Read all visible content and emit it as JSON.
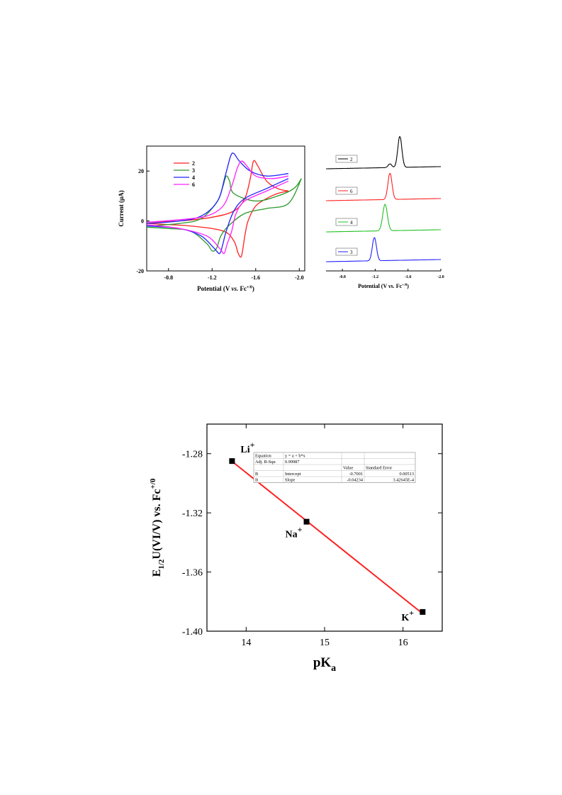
{
  "chart_data": [
    {
      "type": "line",
      "name": "cyclic-voltammogram",
      "xlabel": "Potential (V vs. Fc+/0)",
      "ylabel": "Current (μA)",
      "xlim": [
        -0.6,
        -2.05
      ],
      "ylim": [
        -20,
        30
      ],
      "x_reversed": true,
      "xticks": [
        -0.8,
        -1.2,
        -1.6,
        -2.0
      ],
      "yticks": [
        -20,
        0,
        20
      ],
      "xtick_labels": [
        "-0.8",
        "-1.2",
        "-1.6",
        "-2.0"
      ],
      "ytick_labels": [
        "-20",
        "0",
        "20"
      ],
      "legend_position": "top-left",
      "series": [
        {
          "name": "2",
          "color": "#ff2020",
          "forward_x": [
            -0.6,
            -0.9,
            -1.2,
            -1.4,
            -1.5,
            -1.55,
            -1.58,
            -1.62,
            -1.7,
            -1.8,
            -1.9
          ],
          "forward_y": [
            -0.5,
            0,
            1.5,
            4,
            9,
            17,
            24,
            22,
            16,
            13,
            12
          ],
          "reverse_x": [
            -1.9,
            -1.8,
            -1.7,
            -1.6,
            -1.53,
            -1.5,
            -1.47,
            -1.44,
            -1.4,
            -1.3,
            -1.0,
            -0.6
          ],
          "reverse_y": [
            12,
            11,
            9,
            6,
            0,
            -6,
            -14,
            -13,
            -8,
            -4,
            -2,
            -1
          ]
        },
        {
          "name": "3",
          "color": "#2a9a2a",
          "forward_x": [
            -0.6,
            -0.9,
            -1.1,
            -1.25,
            -1.3,
            -1.33,
            -1.36,
            -1.4,
            -1.6,
            -1.8,
            -1.95,
            -2.02
          ],
          "forward_y": [
            -2,
            -1,
            1,
            8,
            14,
            18,
            16,
            11,
            8,
            10,
            13,
            17
          ],
          "reverse_x": [
            -2.02,
            -1.9,
            -1.7,
            -1.5,
            -1.35,
            -1.28,
            -1.24,
            -1.2,
            -1.15,
            -1.0,
            -0.8,
            -0.6
          ],
          "reverse_y": [
            17,
            7,
            5,
            3,
            -2,
            -6,
            -11,
            -12,
            -9,
            -4,
            -3,
            -2.5
          ]
        },
        {
          "name": "4",
          "color": "#2020ff",
          "forward_x": [
            -0.6,
            -0.9,
            -1.1,
            -1.25,
            -1.32,
            -1.37,
            -1.4,
            -1.45,
            -1.55,
            -1.7,
            -1.9
          ],
          "forward_y": [
            -1,
            0,
            2,
            8,
            18,
            26,
            27,
            24,
            20,
            18,
            19
          ],
          "reverse_x": [
            -1.9,
            -1.7,
            -1.5,
            -1.4,
            -1.33,
            -1.3,
            -1.27,
            -1.22,
            -1.1,
            -0.9,
            -0.6
          ],
          "reverse_y": [
            17,
            13,
            9,
            4,
            -4,
            -9,
            -13,
            -11,
            -6,
            -3,
            -2
          ]
        },
        {
          "name": "6",
          "color": "#ff20ff",
          "forward_x": [
            -0.6,
            -0.9,
            -1.15,
            -1.3,
            -1.38,
            -1.43,
            -1.47,
            -1.52,
            -1.6,
            -1.75,
            -1.9
          ],
          "forward_y": [
            -0.5,
            0.5,
            2,
            6,
            14,
            21,
            24,
            22,
            18,
            17,
            18
          ],
          "reverse_x": [
            -1.9,
            -1.7,
            -1.5,
            -1.42,
            -1.38,
            -1.34,
            -1.31,
            -1.27,
            -1.15,
            -0.9,
            -0.6
          ],
          "reverse_y": [
            16,
            12,
            8,
            3,
            -4,
            -9,
            -13,
            -11,
            -6,
            -3,
            -1.5
          ]
        }
      ]
    },
    {
      "type": "line",
      "name": "differential-pulse-voltammogram",
      "xlabel": "Potential (V vs. Fc+/0)",
      "xlim": [
        -0.6,
        -2.0
      ],
      "x_reversed": true,
      "xticks": [
        -0.8,
        -1.2,
        -1.6,
        -2.0
      ],
      "xtick_labels": [
        "-0.8",
        "-1.2",
        "-1.6",
        "-2.0"
      ],
      "legend_position": "left",
      "series": [
        {
          "name": "2",
          "color": "#000000",
          "baseline": 3,
          "peak_x": -1.5,
          "peak_h": 1.0,
          "width": 0.035,
          "shoulder_x": -1.38,
          "shoulder_h": 0.12
        },
        {
          "name": "6",
          "color": "#ff2020",
          "baseline": 2,
          "peak_x": -1.38,
          "peak_h": 0.85,
          "width": 0.035
        },
        {
          "name": "4",
          "color": "#20c020",
          "baseline": 1,
          "peak_x": -1.32,
          "peak_h": 0.85,
          "width": 0.04
        },
        {
          "name": "3",
          "color": "#2020ff",
          "baseline": 0,
          "peak_x": -1.19,
          "peak_h": 0.75,
          "width": 0.035
        }
      ]
    },
    {
      "type": "scatter",
      "name": "e-half-vs-pka",
      "xlabel": "pK",
      "xlabel_sub": "a",
      "ylabel_main": "E",
      "ylabel_sub": "1/2",
      "ylabel_rest": "U(VI/V) vs. Fc",
      "ylabel_sup": "+/0",
      "xlim": [
        13.5,
        16.5
      ],
      "ylim": [
        -1.4,
        -1.26
      ],
      "xticks": [
        14,
        15,
        16
      ],
      "yticks": [
        -1.4,
        -1.36,
        -1.32,
        -1.28
      ],
      "xtick_labels": [
        "14",
        "15",
        "16"
      ],
      "ytick_labels": [
        "-1.40",
        "-1.36",
        "-1.32",
        "-1.28"
      ],
      "points": [
        {
          "x": 13.82,
          "y": -1.285,
          "label": "Li",
          "sup": "+"
        },
        {
          "x": 14.77,
          "y": -1.326,
          "label": "Na",
          "sup": "+"
        },
        {
          "x": 16.25,
          "y": -1.387,
          "label": "K",
          "sup": "+"
        }
      ],
      "fit": {
        "intercept": -0.7001,
        "slope": -0.04234,
        "color": "#ff2020"
      },
      "point_color": "#000000",
      "stats_table": [
        [
          "Equation",
          "y = a + b*x",
          "",
          ""
        ],
        [
          "Adj. R-Squ",
          "0.99987",
          "",
          ""
        ],
        [
          "",
          "",
          "Value",
          "Standard Error"
        ],
        [
          "B",
          "Intercept",
          "-0.7001",
          "0.00513"
        ],
        [
          "B",
          "Slope",
          "-0.04234",
          "3.42645E-4"
        ]
      ]
    }
  ]
}
